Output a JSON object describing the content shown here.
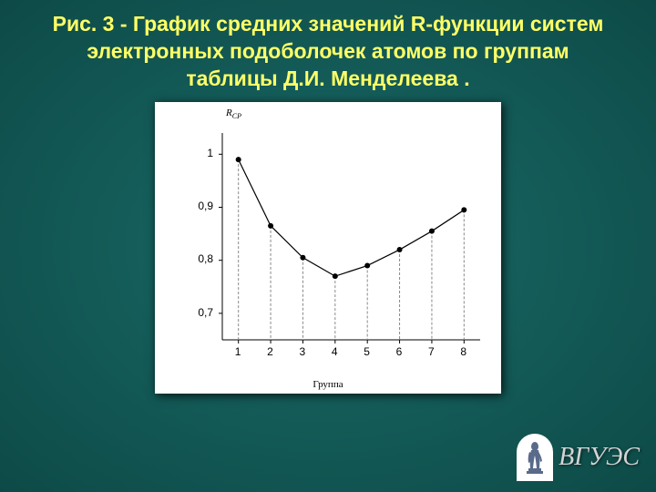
{
  "title": "Рис. 3 - График средних значений R-функции систем электронных подоболочек атомов по группам таблицы Д.И. Менделеева .",
  "chart": {
    "type": "line",
    "y_axis_label": "R",
    "y_axis_sub": "CP",
    "x_axis_label": "Группа",
    "x_ticks": [
      "1",
      "2",
      "3",
      "4",
      "5",
      "6",
      "7",
      "8"
    ],
    "y_ticks": [
      "0,7",
      "0,8",
      "0,9",
      "1"
    ],
    "x_values": [
      1,
      2,
      3,
      4,
      5,
      6,
      7,
      8
    ],
    "y_values": [
      0.99,
      0.865,
      0.805,
      0.77,
      0.79,
      0.82,
      0.855,
      0.895
    ],
    "ylim": [
      0.65,
      1.04
    ],
    "xlim": [
      0.5,
      8.5
    ],
    "line_color": "#000000",
    "line_width": 1.2,
    "marker_color": "#000000",
    "marker_radius": 3,
    "drop_line_dash": "3,2",
    "drop_line_color": "#888888",
    "background_color": "#ffffff",
    "axis_color": "#000000",
    "tick_fontsize": 12,
    "label_fontsize": 11
  },
  "slide_bg_inner": "#1a6b68",
  "slide_bg_outer": "#0d4a47",
  "title_color": "#ffff66",
  "logo_text": "ВГУЭС"
}
